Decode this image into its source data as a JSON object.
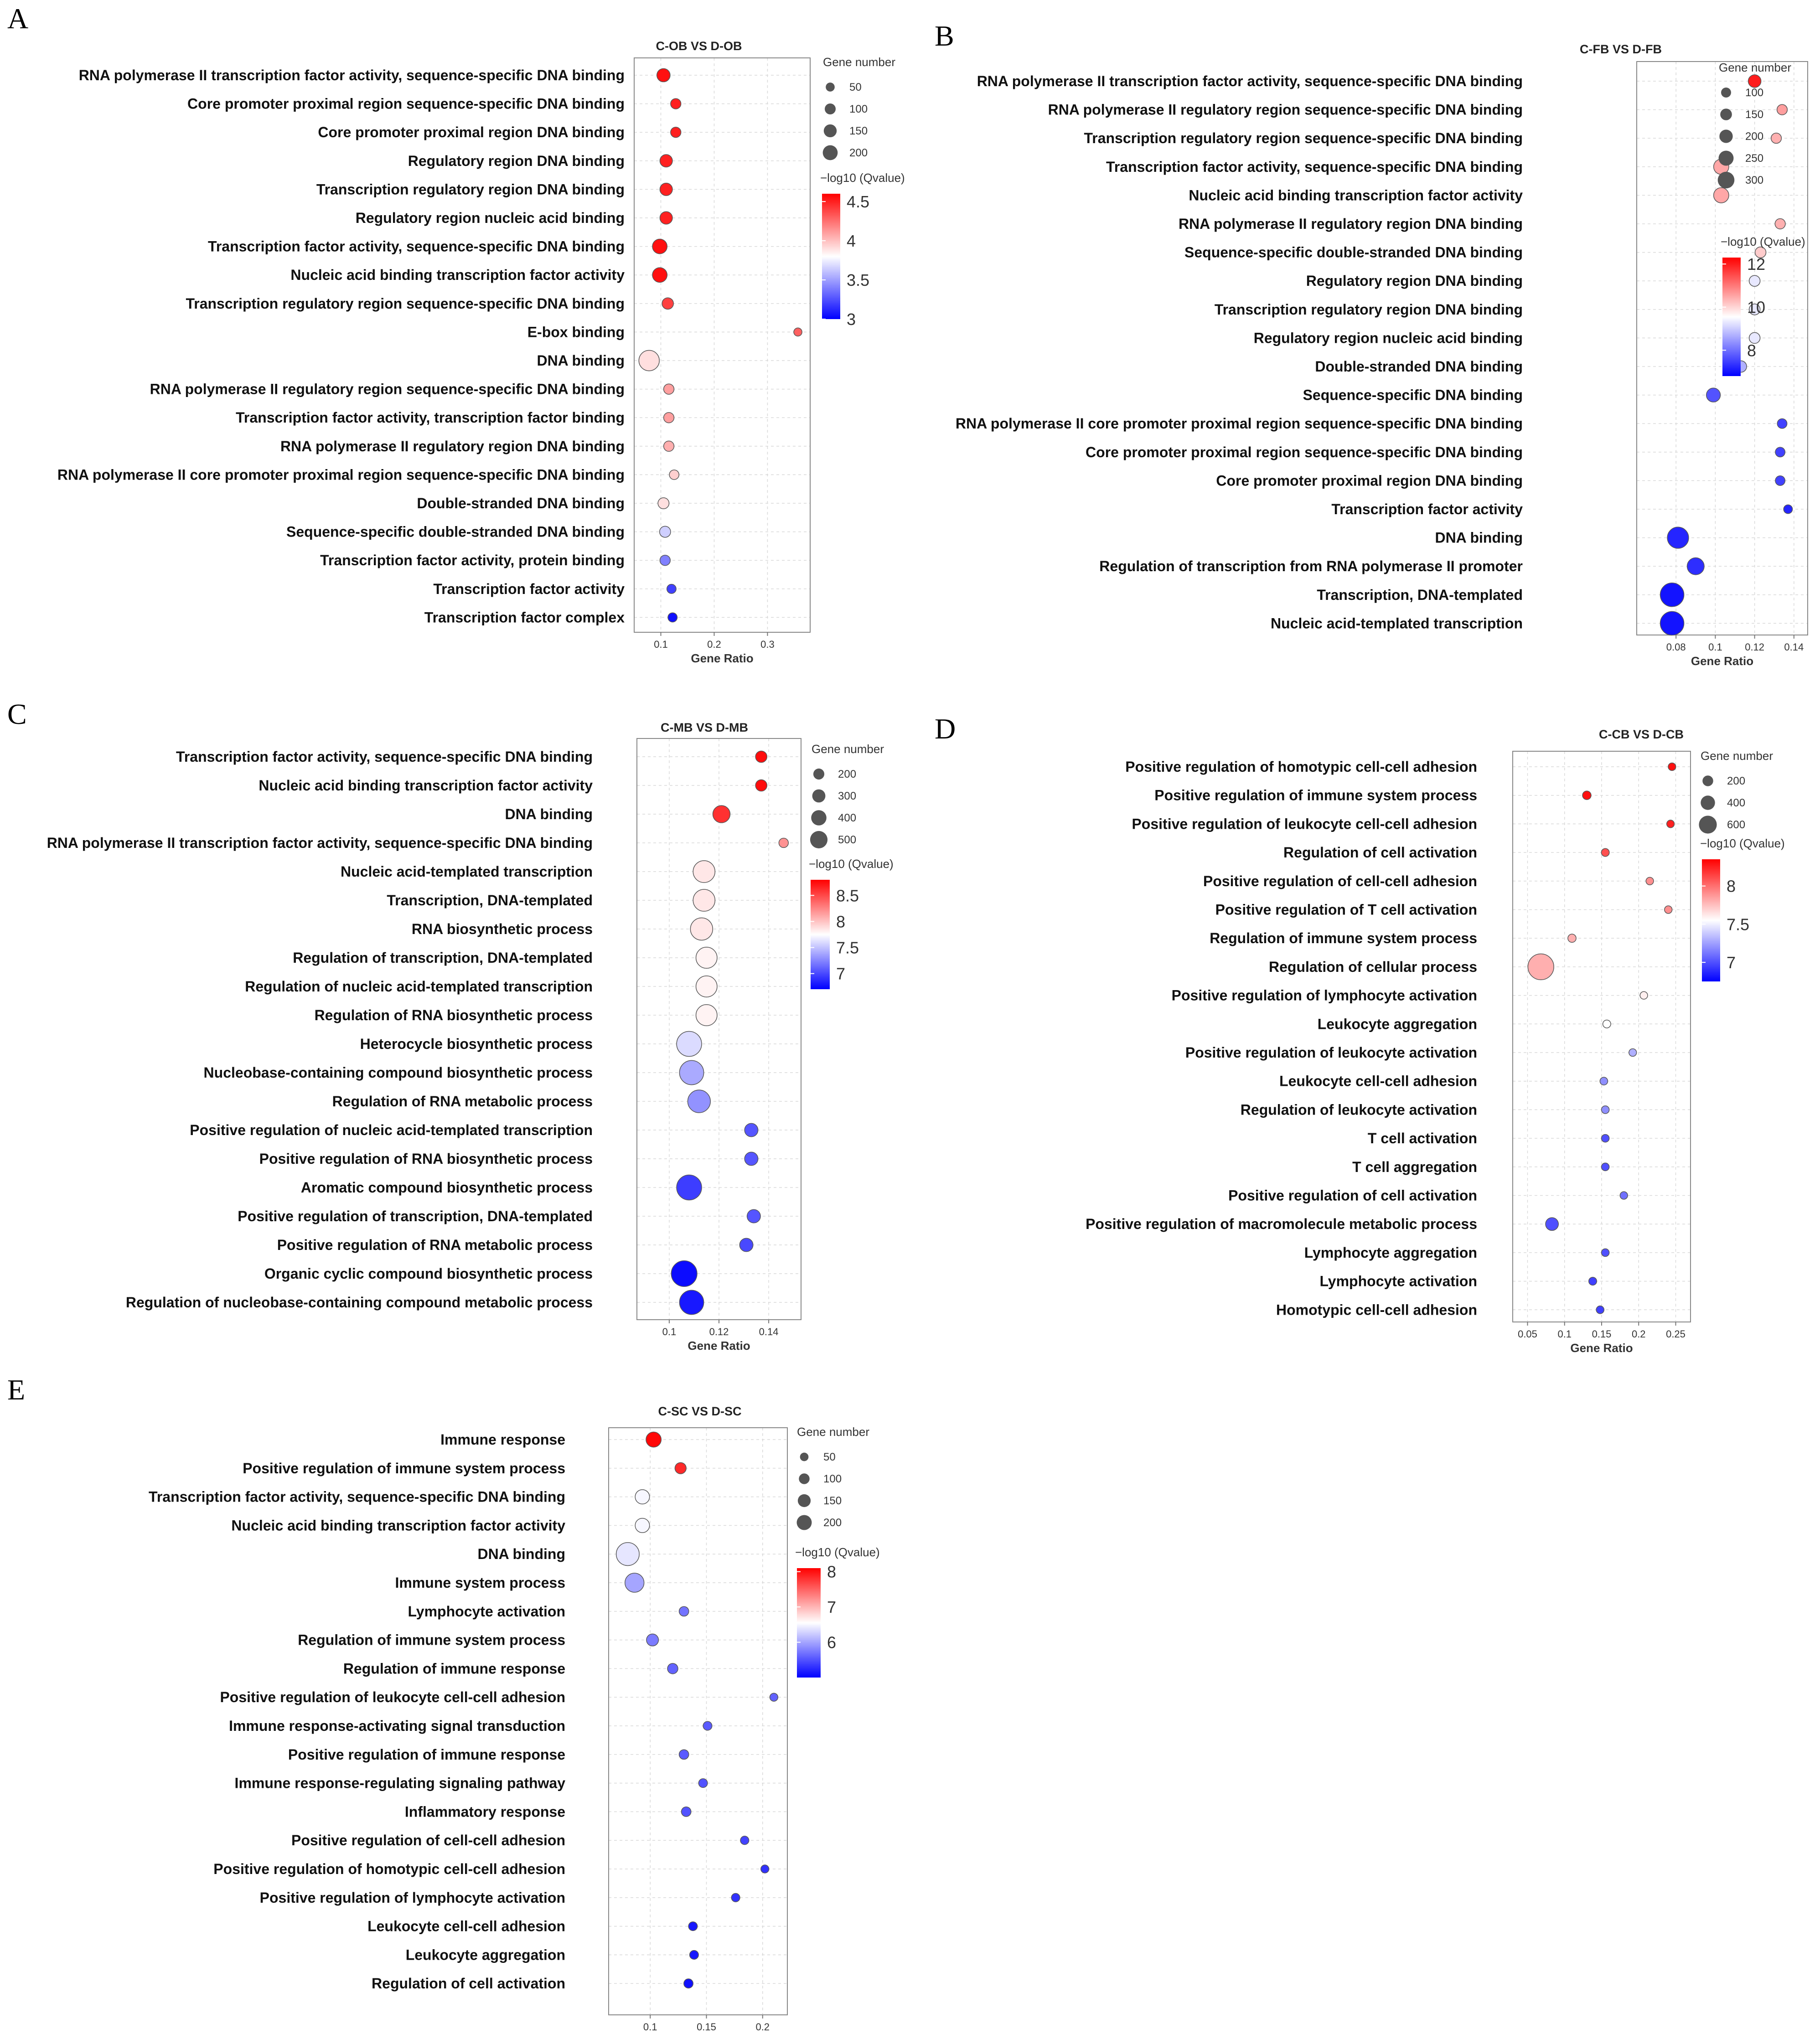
{
  "chart_data": [
    {
      "id": "A",
      "type": "scatter",
      "panel_label": "A",
      "title": "C-OB VS D-OB",
      "xlabel": "Gene Ratio",
      "xlim": [
        0.05,
        0.38
      ],
      "xticks": [
        0.1,
        0.2,
        0.3
      ],
      "xtick_labels": [
        "0.1",
        "0.2",
        "0.3"
      ],
      "size_legend_title": "Gene number",
      "size_legend": [
        50,
        100,
        150,
        200
      ],
      "size_range": [
        30,
        270
      ],
      "color_legend_title": "−log10 (Qvalue)",
      "color_range": [
        3,
        4.6
      ],
      "color_ticks": [
        3,
        3.5,
        4,
        4.5
      ],
      "color_tick_labels": [
        "3",
        "3.5",
        "4",
        "4.5"
      ],
      "terms": [
        {
          "term": "RNA polymerase II transcription factor activity, sequence-specific DNA binding",
          "ratio": 0.105,
          "count": 100,
          "q": 4.55
        },
        {
          "term": "Core promoter proximal region sequence-specific DNA binding",
          "ratio": 0.128,
          "count": 60,
          "q": 4.5
        },
        {
          "term": "Core promoter proximal region DNA binding",
          "ratio": 0.128,
          "count": 60,
          "q": 4.5
        },
        {
          "term": "Regulatory region DNA binding",
          "ratio": 0.11,
          "count": 90,
          "q": 4.5
        },
        {
          "term": "Transcription regulatory region DNA binding",
          "ratio": 0.11,
          "count": 90,
          "q": 4.5
        },
        {
          "term": "Regulatory region nucleic acid binding",
          "ratio": 0.11,
          "count": 90,
          "q": 4.5
        },
        {
          "term": "Transcription factor activity, sequence-specific DNA binding",
          "ratio": 0.098,
          "count": 120,
          "q": 4.55
        },
        {
          "term": "Nucleic acid binding transcription factor activity",
          "ratio": 0.098,
          "count": 120,
          "q": 4.55
        },
        {
          "term": "Transcription regulatory region sequence-specific DNA binding",
          "ratio": 0.113,
          "count": 75,
          "q": 4.4
        },
        {
          "term": "E-box binding",
          "ratio": 0.357,
          "count": 20,
          "q": 4.3
        },
        {
          "term": "DNA binding",
          "ratio": 0.078,
          "count": 200,
          "q": 3.9
        },
        {
          "term": "RNA polymerase II regulatory region sequence-specific DNA binding",
          "ratio": 0.115,
          "count": 60,
          "q": 4.1
        },
        {
          "term": "Transcription factor activity, transcription factor binding",
          "ratio": 0.115,
          "count": 60,
          "q": 4.1
        },
        {
          "term": "RNA polymerase II regulatory region DNA binding",
          "ratio": 0.115,
          "count": 60,
          "q": 4.05
        },
        {
          "term": "RNA polymerase II core promoter proximal region sequence-specific DNA binding",
          "ratio": 0.125,
          "count": 50,
          "q": 3.95
        },
        {
          "term": "Double-stranded DNA binding",
          "ratio": 0.105,
          "count": 70,
          "q": 3.9
        },
        {
          "term": "Sequence-specific double-stranded DNA binding",
          "ratio": 0.108,
          "count": 70,
          "q": 3.65
        },
        {
          "term": "Transcription factor activity, protein binding",
          "ratio": 0.108,
          "count": 60,
          "q": 3.4
        },
        {
          "term": "Transcription factor activity",
          "ratio": 0.12,
          "count": 45,
          "q": 3.2
        },
        {
          "term": "Transcription factor complex",
          "ratio": 0.122,
          "count": 45,
          "q": 3.05
        }
      ]
    },
    {
      "id": "B",
      "type": "scatter",
      "panel_label": "B",
      "title": "C-FB VS D-FB",
      "xlabel": "Gene Ratio",
      "xlim": [
        0.06,
        0.147
      ],
      "xticks": [
        0.08,
        0.1,
        0.12,
        0.14
      ],
      "xtick_labels": [
        "0.08",
        "0.1",
        "0.12",
        "0.14"
      ],
      "size_legend_title": "Gene number",
      "size_legend": [
        100,
        150,
        200,
        250,
        300
      ],
      "size_range": [
        45,
        330
      ],
      "color_legend_title": "−log10 (Qvalue)",
      "color_range": [
        6.8,
        12.3
      ],
      "color_ticks": [
        8,
        10,
        12
      ],
      "color_tick_labels": [
        "8",
        "10",
        "12"
      ],
      "terms": [
        {
          "term": "RNA polymerase II transcription factor activity, sequence-specific DNA binding",
          "ratio": 0.12,
          "count": 120,
          "q": 12.0
        },
        {
          "term": "RNA polymerase II regulatory region sequence-specific DNA binding",
          "ratio": 0.134,
          "count": 80,
          "q": 10.6
        },
        {
          "term": "Transcription regulatory region sequence-specific DNA binding",
          "ratio": 0.131,
          "count": 80,
          "q": 10.4
        },
        {
          "term": "Transcription factor activity, sequence-specific DNA binding",
          "ratio": 0.103,
          "count": 160,
          "q": 10.5
        },
        {
          "term": "Nucleic acid binding transcription factor activity",
          "ratio": 0.103,
          "count": 160,
          "q": 10.5
        },
        {
          "term": "RNA polymerase II regulatory region DNA binding",
          "ratio": 0.133,
          "count": 80,
          "q": 10.4
        },
        {
          "term": "Sequence-specific double-stranded DNA binding",
          "ratio": 0.123,
          "count": 90,
          "q": 10.1
        },
        {
          "term": "Regulatory region DNA binding",
          "ratio": 0.12,
          "count": 90,
          "q": 9.3
        },
        {
          "term": "Transcription regulatory region DNA binding",
          "ratio": 0.12,
          "count": 90,
          "q": 9.3
        },
        {
          "term": "Regulatory region nucleic acid binding",
          "ratio": 0.12,
          "count": 90,
          "q": 9.3
        },
        {
          "term": "Double-stranded DNA binding",
          "ratio": 0.113,
          "count": 100,
          "q": 8.7
        },
        {
          "term": "Sequence-specific DNA binding",
          "ratio": 0.099,
          "count": 140,
          "q": 7.7
        },
        {
          "term": "RNA polymerase II core promoter proximal region sequence-specific DNA binding",
          "ratio": 0.134,
          "count": 70,
          "q": 7.5
        },
        {
          "term": "Core promoter proximal region sequence-specific DNA binding",
          "ratio": 0.133,
          "count": 70,
          "q": 7.5
        },
        {
          "term": "Core promoter proximal region DNA binding",
          "ratio": 0.133,
          "count": 70,
          "q": 7.5
        },
        {
          "term": "Transcription factor activity",
          "ratio": 0.137,
          "count": 55,
          "q": 7.2
        },
        {
          "term": "DNA binding",
          "ratio": 0.081,
          "count": 260,
          "q": 7.2
        },
        {
          "term": "Regulation of transcription from RNA polymerase II promoter",
          "ratio": 0.09,
          "count": 190,
          "q": 7.3
        },
        {
          "term": "Transcription, DNA-templated",
          "ratio": 0.078,
          "count": 300,
          "q": 7.0
        },
        {
          "term": "Nucleic acid-templated transcription",
          "ratio": 0.078,
          "count": 300,
          "q": 7.0
        }
      ]
    },
    {
      "id": "C",
      "type": "scatter",
      "panel_label": "C",
      "title": "C-MB VS D-MB",
      "xlabel": "Gene Ratio",
      "xlim": [
        0.087,
        0.153
      ],
      "xticks": [
        0.1,
        0.12,
        0.14
      ],
      "xtick_labels": [
        "0.1",
        "0.12",
        "0.14"
      ],
      "size_legend_title": "Gene number",
      "size_legend": [
        200,
        300,
        400,
        500
      ],
      "size_range": [
        90,
        560
      ],
      "color_legend_title": "−log10 (Qvalue)",
      "color_range": [
        6.7,
        8.8
      ],
      "color_ticks": [
        7,
        7.5,
        8,
        8.5
      ],
      "color_tick_labels": [
        "7",
        "7.5",
        "8",
        "8.5"
      ],
      "terms": [
        {
          "term": "Transcription factor activity, sequence-specific DNA binding",
          "ratio": 0.137,
          "count": 150,
          "q": 8.75
        },
        {
          "term": "Nucleic acid binding transcription factor activity",
          "ratio": 0.137,
          "count": 150,
          "q": 8.75
        },
        {
          "term": "DNA binding",
          "ratio": 0.121,
          "count": 300,
          "q": 8.6
        },
        {
          "term": "RNA polymerase II transcription factor activity, sequence-specific DNA binding",
          "ratio": 0.146,
          "count": 100,
          "q": 8.2
        },
        {
          "term": "Nucleic acid-templated transcription",
          "ratio": 0.114,
          "count": 420,
          "q": 7.85
        },
        {
          "term": "Transcription, DNA-templated",
          "ratio": 0.114,
          "count": 420,
          "q": 7.85
        },
        {
          "term": "RNA biosynthetic process",
          "ratio": 0.113,
          "count": 430,
          "q": 7.85
        },
        {
          "term": "Regulation of transcription, DNA-templated",
          "ratio": 0.115,
          "count": 400,
          "q": 7.8
        },
        {
          "term": "Regulation of nucleic acid-templated transcription",
          "ratio": 0.115,
          "count": 400,
          "q": 7.8
        },
        {
          "term": "Regulation of RNA biosynthetic process",
          "ratio": 0.115,
          "count": 400,
          "q": 7.8
        },
        {
          "term": "Heterocycle biosynthetic process",
          "ratio": 0.108,
          "count": 500,
          "q": 7.6
        },
        {
          "term": "Nucleobase-containing compound biosynthetic process",
          "ratio": 0.109,
          "count": 480,
          "q": 7.4
        },
        {
          "term": "Regulation of RNA metabolic process",
          "ratio": 0.112,
          "count": 440,
          "q": 7.3
        },
        {
          "term": "Positive regulation of nucleic acid-templated transcription",
          "ratio": 0.133,
          "count": 200,
          "q": 7.05
        },
        {
          "term": "Positive regulation of RNA biosynthetic process",
          "ratio": 0.133,
          "count": 200,
          "q": 7.05
        },
        {
          "term": "Aromatic compound biosynthetic process",
          "ratio": 0.108,
          "count": 500,
          "q": 6.95
        },
        {
          "term": "Positive regulation of transcription, DNA-templated",
          "ratio": 0.134,
          "count": 200,
          "q": 7.05
        },
        {
          "term": "Positive regulation of RNA metabolic process",
          "ratio": 0.131,
          "count": 200,
          "q": 7.0
        },
        {
          "term": "Organic cyclic compound biosynthetic process",
          "ratio": 0.106,
          "count": 520,
          "q": 6.75
        },
        {
          "term": "Regulation of nucleobase-containing compound metabolic process",
          "ratio": 0.109,
          "count": 480,
          "q": 6.8
        }
      ]
    },
    {
      "id": "D",
      "type": "scatter",
      "panel_label": "D",
      "title": "C-CB VS D-CB",
      "xlabel": "Gene Ratio",
      "xlim": [
        0.03,
        0.27
      ],
      "xticks": [
        0.05,
        0.1,
        0.15,
        0.2,
        0.25
      ],
      "xtick_labels": [
        "0.05",
        "0.1",
        "0.15",
        "0.2",
        "0.25"
      ],
      "size_legend_title": "Gene number",
      "size_legend": [
        200,
        400,
        600
      ],
      "size_range": [
        30,
        700
      ],
      "color_legend_title": "−log10 (Qvalue)",
      "color_range": [
        6.75,
        8.35
      ],
      "color_ticks": [
        7,
        7.5,
        8
      ],
      "color_tick_labels": [
        "7",
        "7.5",
        "8"
      ],
      "terms": [
        {
          "term": "Positive regulation of homotypic cell-cell adhesion",
          "ratio": 0.245,
          "count": 40,
          "q": 8.3
        },
        {
          "term": "Positive regulation of immune system process",
          "ratio": 0.13,
          "count": 70,
          "q": 8.3
        },
        {
          "term": "Positive regulation of leukocyte cell-cell adhesion",
          "ratio": 0.243,
          "count": 40,
          "q": 8.25
        },
        {
          "term": "Regulation of cell activation",
          "ratio": 0.155,
          "count": 50,
          "q": 8.1
        },
        {
          "term": "Positive regulation of cell-cell adhesion",
          "ratio": 0.215,
          "count": 40,
          "q": 7.9
        },
        {
          "term": "Positive regulation of T cell activation",
          "ratio": 0.24,
          "count": 40,
          "q": 7.9
        },
        {
          "term": "Regulation of immune system process",
          "ratio": 0.11,
          "count": 60,
          "q": 7.8
        },
        {
          "term": "Regulation of cellular process",
          "ratio": 0.068,
          "count": 600,
          "q": 7.8
        },
        {
          "term": "Positive regulation of lymphocyte activation",
          "ratio": 0.207,
          "count": 40,
          "q": 7.6
        },
        {
          "term": "Leukocyte aggregation",
          "ratio": 0.157,
          "count": 50,
          "q": 7.55
        },
        {
          "term": "Positive regulation of leukocyte activation",
          "ratio": 0.192,
          "count": 40,
          "q": 7.3
        },
        {
          "term": "Leukocyte cell-cell adhesion",
          "ratio": 0.153,
          "count": 45,
          "q": 7.2
        },
        {
          "term": "Regulation of leukocyte activation",
          "ratio": 0.155,
          "count": 45,
          "q": 7.2
        },
        {
          "term": "T cell activation",
          "ratio": 0.155,
          "count": 45,
          "q": 7.0
        },
        {
          "term": "T cell aggregation",
          "ratio": 0.155,
          "count": 45,
          "q": 7.0
        },
        {
          "term": "Positive regulation of cell activation",
          "ratio": 0.18,
          "count": 40,
          "q": 7.1
        },
        {
          "term": "Positive regulation of macromolecule metabolic process",
          "ratio": 0.083,
          "count": 200,
          "q": 7.0
        },
        {
          "term": "Lymphocyte aggregation",
          "ratio": 0.155,
          "count": 45,
          "q": 7.0
        },
        {
          "term": "Lymphocyte activation",
          "ratio": 0.138,
          "count": 50,
          "q": 6.95
        },
        {
          "term": "Homotypic cell-cell adhesion",
          "ratio": 0.148,
          "count": 45,
          "q": 6.95
        }
      ]
    },
    {
      "id": "E",
      "type": "scatter",
      "panel_label": "E",
      "title": "C-SC VS D-SC",
      "xlabel": "Gene Ratio",
      "xlim": [
        0.063,
        0.222
      ],
      "xticks": [
        0.1,
        0.15,
        0.2
      ],
      "xtick_labels": [
        "0.1",
        "0.15",
        "0.2"
      ],
      "size_legend_title": "Gene number",
      "size_legend": [
        50,
        100,
        150,
        200
      ],
      "size_range": [
        30,
        250
      ],
      "color_legend_title": "−log10 (Qvalue)",
      "color_range": [
        5.0,
        8.1
      ],
      "color_ticks": [
        6,
        7,
        8
      ],
      "color_tick_labels": [
        "6",
        "7",
        "8"
      ],
      "terms": [
        {
          "term": "Immune response",
          "ratio": 0.103,
          "count": 130,
          "q": 8.05
        },
        {
          "term": "Positive regulation of immune system process",
          "ratio": 0.127,
          "count": 80,
          "q": 7.85
        },
        {
          "term": "Transcription factor activity, sequence-specific DNA binding",
          "ratio": 0.093,
          "count": 120,
          "q": 6.5
        },
        {
          "term": "Nucleic acid binding transcription factor activity",
          "ratio": 0.093,
          "count": 120,
          "q": 6.5
        },
        {
          "term": "DNA binding",
          "ratio": 0.08,
          "count": 230,
          "q": 6.4
        },
        {
          "term": "Immune system process",
          "ratio": 0.086,
          "count": 180,
          "q": 6.0
        },
        {
          "term": "Lymphocyte activation",
          "ratio": 0.13,
          "count": 60,
          "q": 5.7
        },
        {
          "term": "Regulation of immune system process",
          "ratio": 0.102,
          "count": 90,
          "q": 5.75
        },
        {
          "term": "Regulation of immune response",
          "ratio": 0.12,
          "count": 70,
          "q": 5.6
        },
        {
          "term": "Positive regulation of leukocyte cell-cell adhesion",
          "ratio": 0.21,
          "count": 40,
          "q": 5.6
        },
        {
          "term": "Immune response-activating signal transduction",
          "ratio": 0.151,
          "count": 50,
          "q": 5.55
        },
        {
          "term": "Positive regulation of immune response",
          "ratio": 0.13,
          "count": 60,
          "q": 5.55
        },
        {
          "term": "Immune response-regulating signaling pathway",
          "ratio": 0.147,
          "count": 50,
          "q": 5.5
        },
        {
          "term": "Inflammatory response",
          "ratio": 0.132,
          "count": 60,
          "q": 5.5
        },
        {
          "term": "Positive regulation of cell-cell adhesion",
          "ratio": 0.184,
          "count": 45,
          "q": 5.4
        },
        {
          "term": "Positive regulation of homotypic cell-cell adhesion",
          "ratio": 0.202,
          "count": 40,
          "q": 5.3
        },
        {
          "term": "Positive regulation of lymphocyte activation",
          "ratio": 0.176,
          "count": 45,
          "q": 5.3
        },
        {
          "term": "Leukocyte cell-cell adhesion",
          "ratio": 0.138,
          "count": 50,
          "q": 5.15
        },
        {
          "term": "Leukocyte aggregation",
          "ratio": 0.139,
          "count": 50,
          "q": 5.15
        },
        {
          "term": "Regulation of cell activation",
          "ratio": 0.134,
          "count": 55,
          "q": 5.1
        }
      ]
    }
  ]
}
